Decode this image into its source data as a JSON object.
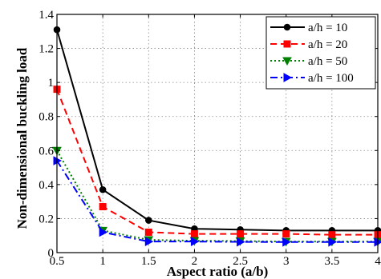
{
  "chart_data": {
    "type": "line",
    "title": "",
    "xlabel": "Aspect ratio (a/b)",
    "ylabel": "Non-dimensional buckling load",
    "xlim": [
      0.5,
      4
    ],
    "ylim": [
      0,
      1.4
    ],
    "x": [
      0.5,
      1,
      1.5,
      2,
      2.5,
      3,
      3.5,
      4
    ],
    "xticks": [
      "0.5",
      "1",
      "1.5",
      "2",
      "2.5",
      "3",
      "3.5",
      "4"
    ],
    "yticks": [
      "0",
      "0.2",
      "0.4",
      "0.6",
      "0.8",
      "1",
      "1.2",
      "1.4"
    ],
    "grid": true,
    "legend_position": "top-right",
    "series": [
      {
        "name": "a/h = 10",
        "color": "#000000",
        "marker": "circle",
        "line": "solid",
        "values": [
          1.31,
          0.37,
          0.19,
          0.14,
          0.135,
          0.13,
          0.13,
          0.13
        ]
      },
      {
        "name": "a/h = 20",
        "color": "#ff0000",
        "marker": "square",
        "line": "dashed",
        "values": [
          0.96,
          0.27,
          0.12,
          0.11,
          0.11,
          0.11,
          0.105,
          0.105
        ]
      },
      {
        "name": "a/h = 50",
        "color": "#008000",
        "marker": "triangle-down",
        "line": "dotted",
        "values": [
          0.6,
          0.13,
          0.075,
          0.07,
          0.068,
          0.065,
          0.065,
          0.065
        ]
      },
      {
        "name": "a/h = 100",
        "color": "#0000ff",
        "marker": "triangle-right",
        "line": "dashdot",
        "values": [
          0.54,
          0.12,
          0.065,
          0.065,
          0.063,
          0.062,
          0.062,
          0.062
        ]
      }
    ]
  }
}
